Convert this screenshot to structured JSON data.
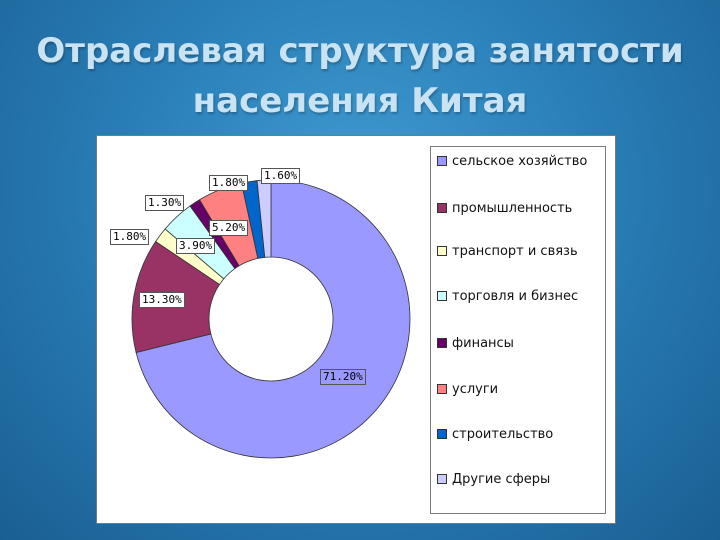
{
  "slide": {
    "title_line1": "Отраслевая структура занятости",
    "title_line2": "населения Китая"
  },
  "chart_data": {
    "type": "pie",
    "variant": "donut",
    "title": "",
    "legend_placement": "right",
    "series": [
      {
        "labels": [
          "сельское хозяйство",
          "промышленность",
          "транспорт и связь",
          "торговля и бизнес",
          "финансы",
          "услуги",
          "строительство",
          "Другие сферы"
        ],
        "values": [
          71.2,
          13.3,
          1.8,
          3.9,
          1.3,
          5.2,
          1.8,
          1.6
        ],
        "value_labels": [
          "71.20%",
          "13.30%",
          "1.80%",
          "3.90%",
          "1.30%",
          "5.20%",
          "1.80%",
          "1.60%"
        ],
        "colors": [
          "#9999ff",
          "#993366",
          "#ffffcc",
          "#ccffff",
          "#660066",
          "#ff8080",
          "#0066cc",
          "#ccccff"
        ]
      }
    ]
  }
}
